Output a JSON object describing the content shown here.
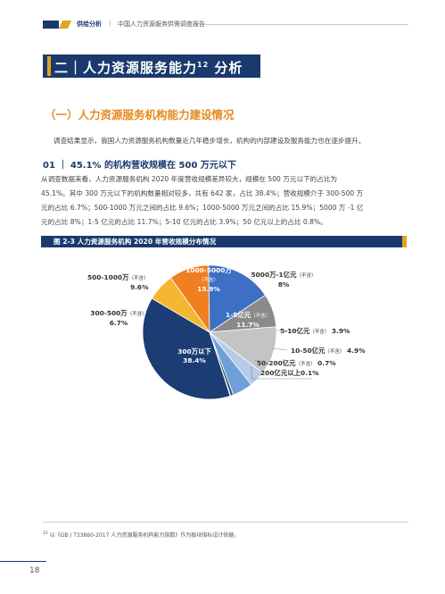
{
  "header": {
    "section": "供给分析",
    "separator": "|",
    "publication": "中国人力资源服务供需调查报告"
  },
  "chapter": {
    "title": "二｜人力资源服务能力",
    "footnote_ref": "12",
    "title_suffix": " 分析"
  },
  "subsection": {
    "title": "（一）人力资源服务机构能力建设情况"
  },
  "intro_paragraph": "调查结果显示，我国人力资源服务机构数量近几年稳步增长，机构的内部建设及服务能力也在逐步提升。",
  "section_01": {
    "heading": "01 ｜ 45.1% 的机构营收规模在 500 万元以下",
    "lines": [
      "从调查数据来看，人力资源服务机构 2020 年度营收规模差异较大，规模在 500 万元以下的占比为",
      "45.1%。其中 300 万元以下的机构数量相对较多，共有 642 家，占比 38.4%；营收规模介于 300-500 万",
      "元的占比 6.7%；500-1000 万元之间的占比 9.6%；1000-5000 万元之间的占比 15.9%；5000 万 -1 亿",
      "元的占比 8%；1-5 亿元的占比 11.7%；5-10 亿元的占比 3.9%；50 亿元以上的占比 0.8%。"
    ]
  },
  "figure": {
    "caption": "图 2-3  人力资源服务机构 2020 年营收规模分布情况"
  },
  "chart_data": {
    "type": "pie",
    "title": "",
    "slices": [
      {
        "name": "300万以下",
        "value": 38.4,
        "color": "#1b3d74"
      },
      {
        "name": "300-500万",
        "note": "（不含）",
        "value": 6.7,
        "color": "#f5b731"
      },
      {
        "name": "500-1000万",
        "note": "（不含）",
        "value": 9.6,
        "color": "#f07f22"
      },
      {
        "name": "1000-5000万",
        "note": "（不含）",
        "value": 15.9,
        "color": "#3d6fc4"
      },
      {
        "name": "5000万-1亿元",
        "note": "（不含）",
        "value": 8,
        "color": "#8a8a8a"
      },
      {
        "name": "1-5亿元",
        "note": "（不含）",
        "value": 11.7,
        "color": "#c4c4c4"
      },
      {
        "name": "5-10亿元",
        "note": "（不含）",
        "value": 3.9,
        "color": "#b6cbe8"
      },
      {
        "name": "10-50亿元",
        "note": "（不含）",
        "value": 4.9,
        "color": "#6f9fd9"
      },
      {
        "name": "50-200亿元",
        "note": "（不含）",
        "value": 0.7,
        "color": "#3a4f7a"
      },
      {
        "name": "200亿元以上",
        "value": 0.1,
        "color": "#f5b731"
      }
    ],
    "labels": {
      "s300": "300万以下",
      "v300": "38.4%",
      "s300_500": "300-500万",
      "n300_500": "（不含）",
      "v300_500": "6.7%",
      "s500_1000": "500-1000万",
      "n500_1000": "（不含）",
      "v500_1000": "9.6%",
      "s1000_5000": "1000-5000万",
      "n1000_5000": "（不含）",
      "v1000_5000": "15.9%",
      "s5000": "5000万-1亿元",
      "n5000": "（不含）",
      "v5000": "8%",
      "s1_5": "1-5亿元",
      "n1_5": "（不含）",
      "v1_5": "11.7%",
      "s5_10": "5-10亿元",
      "n5_10": "（不含）",
      "v5_10": "3.9%",
      "s10_50": "10-50亿元",
      "n10_50": "（不含）",
      "v10_50": "4.9%",
      "s50_200": "50-200亿元",
      "n50_200": "（不含）",
      "v50_200": "0.7%",
      "s200": "200亿元以上",
      "v200": "0.1%"
    }
  },
  "footnote": {
    "ref": "12",
    "text": " 以《GB / T33860-2017 人力资源服务机构能力指数》作为板块指标设计依据。"
  },
  "page_number": "18"
}
